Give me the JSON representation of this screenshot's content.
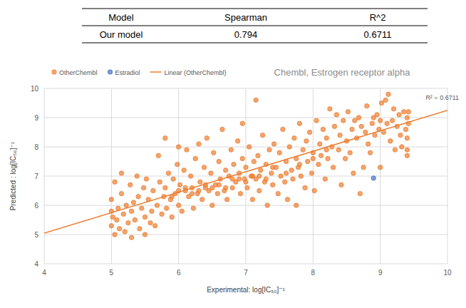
{
  "table": {
    "columns": [
      "Model",
      "Spearman",
      "R^2"
    ],
    "rows": [
      [
        "Our model",
        0.794,
        0.6711
      ]
    ]
  },
  "chart_data": {
    "type": "scatter",
    "title": "Chembl, Estrogen receptor alpha",
    "x_label": "Experimental: log[IC₅₀]⁻¹",
    "y_label": "Predicted : log[IC₅₀]⁻¹",
    "xlim": [
      4,
      10
    ],
    "ylim": [
      4,
      10
    ],
    "xticks": [
      4,
      5,
      6,
      7,
      8,
      9,
      10
    ],
    "yticks": [
      4,
      5,
      6,
      7,
      8,
      9,
      10
    ],
    "grid": true,
    "legend": "top-left",
    "annotations": [
      "R² = 0.6711"
    ],
    "series": [
      {
        "name": "OtherChembl",
        "type": "scatter",
        "color": "#ED7D31",
        "marker": "circle",
        "x": [
          5.0,
          5.0,
          5.0,
          5.02,
          5.05,
          5.05,
          5.08,
          5.1,
          5.12,
          5.15,
          5.15,
          5.18,
          5.2,
          5.22,
          5.25,
          5.28,
          5.3,
          5.3,
          5.33,
          5.35,
          5.38,
          5.4,
          5.42,
          5.45,
          5.48,
          5.5,
          5.5,
          5.52,
          5.55,
          5.58,
          5.6,
          5.62,
          5.65,
          5.68,
          5.7,
          5.72,
          5.75,
          5.78,
          5.8,
          5.8,
          5.82,
          5.85,
          5.88,
          5.9,
          5.92,
          5.95,
          5.98,
          6.0,
          6.0,
          6.02,
          6.05,
          6.08,
          6.1,
          6.12,
          6.15,
          6.18,
          6.2,
          6.22,
          6.25,
          6.28,
          6.3,
          6.32,
          6.35,
          6.38,
          6.4,
          6.42,
          6.45,
          6.48,
          6.5,
          6.52,
          6.55,
          6.58,
          6.6,
          6.62,
          6.65,
          6.68,
          6.7,
          6.72,
          6.75,
          6.78,
          6.8,
          6.82,
          6.85,
          6.88,
          6.9,
          6.92,
          6.95,
          6.95,
          6.98,
          7.0,
          7.02,
          7.05,
          7.08,
          7.1,
          7.12,
          7.15,
          7.15,
          7.18,
          7.2,
          7.22,
          7.25,
          7.28,
          7.3,
          7.32,
          7.35,
          7.38,
          7.4,
          7.42,
          7.45,
          7.48,
          7.5,
          7.52,
          7.55,
          7.58,
          7.6,
          7.62,
          7.65,
          7.68,
          7.7,
          7.72,
          7.75,
          7.75,
          7.78,
          7.8,
          7.82,
          7.85,
          7.88,
          7.9,
          7.92,
          7.95,
          7.98,
          8.0,
          8.02,
          8.05,
          8.08,
          8.1,
          8.12,
          8.15,
          8.18,
          8.2,
          8.22,
          8.25,
          8.28,
          8.3,
          8.32,
          8.35,
          8.38,
          8.4,
          8.42,
          8.45,
          8.48,
          8.5,
          8.52,
          8.55,
          8.58,
          8.6,
          8.62,
          8.65,
          8.68,
          8.7,
          8.72,
          8.75,
          8.78,
          8.8,
          8.82,
          8.85,
          8.88,
          8.9,
          8.92,
          8.95,
          8.98,
          9.0,
          9.0,
          9.02,
          9.05,
          9.08,
          9.1,
          9.12,
          9.15,
          9.18,
          9.2,
          9.22,
          9.25,
          9.28,
          9.3,
          9.32,
          9.35,
          9.38,
          9.4,
          9.4,
          9.4,
          9.42,
          9.42,
          9.4,
          6.1,
          6.3,
          6.5,
          6.7,
          6.9,
          7.1,
          7.3,
          6.2,
          6.6,
          7.0,
          5.9,
          6.0,
          6.4,
          6.8,
          7.2,
          7.4,
          7.6,
          7.8,
          8.0,
          8.2
        ],
        "values": [
          5.3,
          5.8,
          6.2,
          5.6,
          5.0,
          6.8,
          5.5,
          5.9,
          5.2,
          7.1,
          6.4,
          5.7,
          5.1,
          6.0,
          5.4,
          6.7,
          5.8,
          4.9,
          6.1,
          5.5,
          7.0,
          6.3,
          5.2,
          5.9,
          6.6,
          5.6,
          5.0,
          6.9,
          6.2,
          5.4,
          5.8,
          6.5,
          5.3,
          6.0,
          7.7,
          6.8,
          5.7,
          6.3,
          8.3,
          6.6,
          5.9,
          7.1,
          6.2,
          5.6,
          6.9,
          6.4,
          7.4,
          6.0,
          8.0,
          6.7,
          5.8,
          7.2,
          6.5,
          7.9,
          6.3,
          7.0,
          6.6,
          5.9,
          7.6,
          6.4,
          8.1,
          6.8,
          6.2,
          7.3,
          6.6,
          8.3,
          6.5,
          7.1,
          6.0,
          7.8,
          6.7,
          6.4,
          7.5,
          6.9,
          8.6,
          6.5,
          7.2,
          6.2,
          7.0,
          7.9,
          6.6,
          7.4,
          6.8,
          8.2,
          7.1,
          6.4,
          8.8,
          7.6,
          6.9,
          7.3,
          6.6,
          8.0,
          7.0,
          6.2,
          7.5,
          9.6,
          6.9,
          7.7,
          6.5,
          7.2,
          8.4,
          6.8,
          7.4,
          6.0,
          7.9,
          7.1,
          6.7,
          8.1,
          7.3,
          6.4,
          7.8,
          7.0,
          8.6,
          6.8,
          7.5,
          6.2,
          8.0,
          7.2,
          6.9,
          8.3,
          7.6,
          6.0,
          7.3,
          8.8,
          7.0,
          7.9,
          6.6,
          8.2,
          7.5,
          8.5,
          7.1,
          7.8,
          6.5,
          8.9,
          7.4,
          8.1,
          7.7,
          8.6,
          6.9,
          8.3,
          7.6,
          9.3,
          8.0,
          7.3,
          8.7,
          9.1,
          7.9,
          8.4,
          6.7,
          8.9,
          7.6,
          8.2,
          9.2,
          7.8,
          8.6,
          7.1,
          8.9,
          8.3,
          9.0,
          6.4,
          8.7,
          7.3,
          8.5,
          9.4,
          8.1,
          7.8,
          8.8,
          9.0,
          8.4,
          9.1,
          8.6,
          7.3,
          8.9,
          9.5,
          8.5,
          9.6,
          8.8,
          9.8,
          8.2,
          8.9,
          9.3,
          7.9,
          8.7,
          9.1,
          8.4,
          8.0,
          9.2,
          8.6,
          7.7,
          9.0,
          8.3,
          8.8,
          9.2,
          7.9,
          6.6,
          6.5,
          6.6,
          6.6,
          6.9,
          7.0,
          6.9,
          6.4,
          6.7,
          6.8,
          6.3,
          6.5,
          6.7,
          6.9,
          7.0,
          7.3,
          7.1,
          7.4,
          7.6,
          7.9
        ]
      },
      {
        "name": "Estradiol",
        "type": "scatter",
        "color": "#4472C4",
        "marker": "circle",
        "x": [
          8.9
        ],
        "values": [
          6.93
        ]
      },
      {
        "name": "Linear (OtherChembl)",
        "type": "line",
        "color": "#ED7D31",
        "line_style": "solid",
        "x": [
          4,
          10
        ],
        "values": [
          5.05,
          9.25
        ]
      }
    ]
  }
}
